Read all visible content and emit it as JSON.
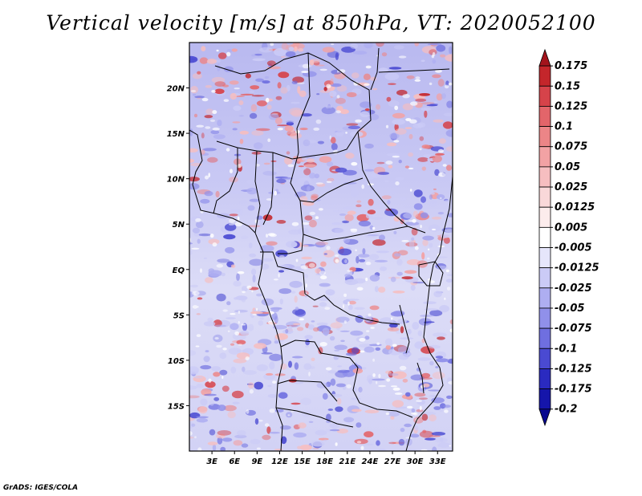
{
  "title": "Vertical velocity [m/s] at 850hPa, VT: 2020052100",
  "credit": "GrADS: IGES/COLA",
  "map": {
    "lon_range": [
      0,
      35
    ],
    "lat_range": [
      -20,
      25
    ],
    "x_ticks": [
      "3E",
      "6E",
      "9E",
      "12E",
      "15E",
      "18E",
      "21E",
      "24E",
      "27E",
      "30E",
      "33E"
    ],
    "x_tick_values": [
      3,
      6,
      9,
      12,
      15,
      18,
      21,
      24,
      27,
      30,
      33
    ],
    "y_ticks": [
      "20N",
      "15N",
      "10N",
      "5N",
      "EQ",
      "5S",
      "10S",
      "15S"
    ],
    "y_tick_values": [
      20,
      15,
      10,
      5,
      0,
      -5,
      -10,
      -15
    ]
  },
  "colorbar": {
    "labels": [
      "0.175",
      "0.15",
      "0.125",
      "0.1",
      "0.075",
      "0.05",
      "0.025",
      "0.0125",
      "0.005",
      "-0.005",
      "-0.0125",
      "-0.025",
      "-0.05",
      "-0.075",
      "-0.1",
      "-0.125",
      "-0.175",
      "-0.2"
    ],
    "colors": [
      "#a3141c",
      "#c4262b",
      "#d6434a",
      "#e3656a",
      "#ec8587",
      "#f2a2a4",
      "#f6bec0",
      "#f9d8d9",
      "#fcecec",
      "#ffffff",
      "#e6e6fb",
      "#cbcbf6",
      "#aeaef1",
      "#9090ea",
      "#6f6fe0",
      "#4a4ad2",
      "#2a2ac0",
      "#1515aa",
      "#08088f"
    ]
  }
}
